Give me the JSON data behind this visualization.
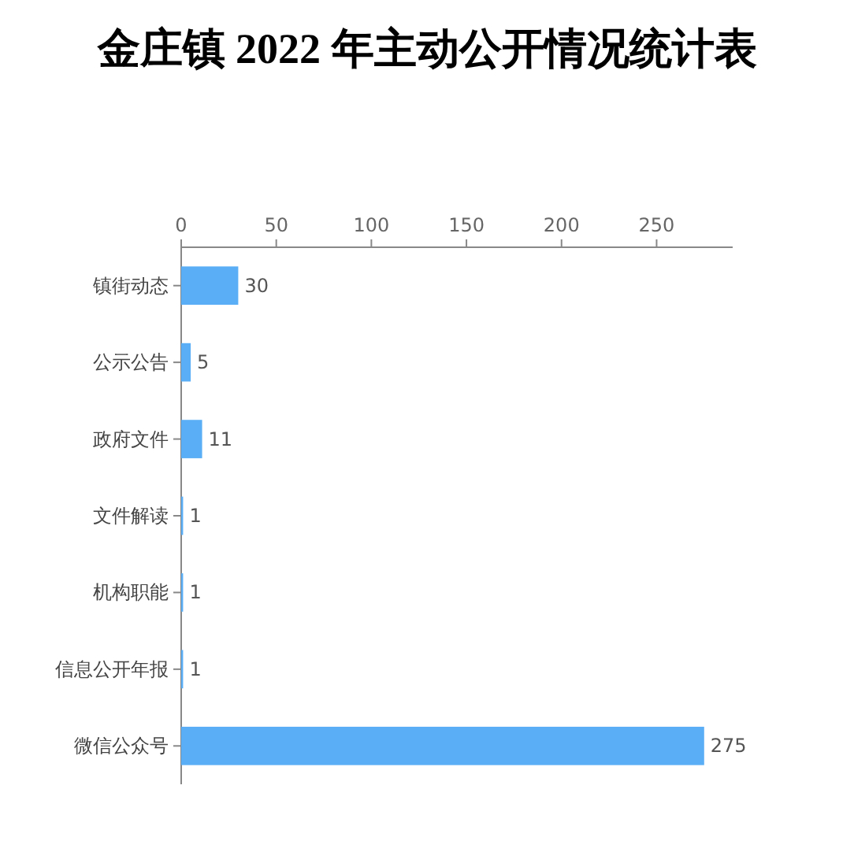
{
  "chart_data": {
    "type": "bar",
    "title": "金庄镇 2022 年主动公开情况统计表",
    "orientation": "horizontal",
    "categories": [
      "镇街动态",
      "公示公告",
      "政府文件",
      "文件解读",
      "机构职能",
      "信息公开年报",
      "微信公众号"
    ],
    "values": [
      30,
      5,
      11,
      1,
      1,
      1,
      275
    ],
    "color": "#5aaef5",
    "xlim": [
      0,
      290
    ],
    "xticks": [
      0,
      50,
      100,
      150,
      200,
      250
    ],
    "data_labels": true
  }
}
